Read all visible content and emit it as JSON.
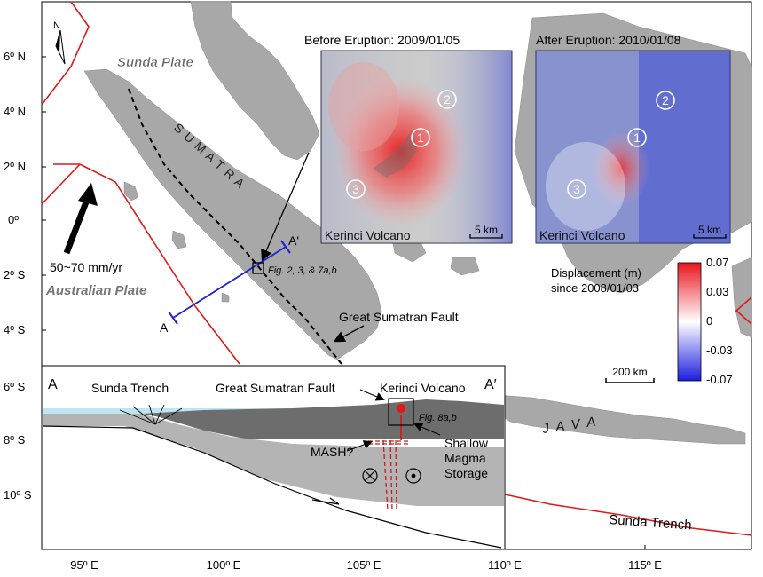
{
  "map": {
    "north_label": "N",
    "lat_labels": [
      "6º N",
      "4º N",
      "2º N",
      "0º",
      "2º S",
      "4º S",
      "6º S",
      "8º S",
      "10º S"
    ],
    "lon_labels": [
      "95º E",
      "100º E",
      "105º E",
      "110º E",
      "115º E"
    ],
    "plate_sunda": "Sunda Plate",
    "plate_australian": "Australian Plate",
    "rate": "50~70 mm/yr",
    "island_sumatra": "S U M A T R A",
    "island_java": "J A V A",
    "fault_label": "Great Sumatran Fault",
    "trench_label": "Sunda Trench",
    "profile_start": "A",
    "profile_end": "A'",
    "fig_ref_main": "Fig. 2, 3, & 7a,b",
    "scale_bar": "200 km"
  },
  "insar": {
    "before_title": "Before Eruption: 2009/01/05",
    "after_title": "After Eruption: 2010/01/08",
    "volcano_label": "Kerinci Volcano",
    "scale": "5 km",
    "markers": [
      "1",
      "2",
      "3"
    ]
  },
  "colorbar": {
    "title_line1": "Displacement (m)",
    "title_line2": "since 2008/01/03",
    "ticks": [
      "0.07",
      "0.03",
      "0",
      "-0.03",
      "-0.07"
    ],
    "colors": {
      "max": "#e8161e",
      "mid": "#ffffff",
      "min": "#1c1ce0"
    }
  },
  "cross_section": {
    "label_a": "A",
    "label_a_prime": "A′",
    "trench": "Sunda Trench",
    "fault": "Great Sumatran Fault",
    "volcano": "Kerinci Volcano",
    "fig_ref": "Fig. 8a,b",
    "mash": "MASH?",
    "storage_line1": "Shallow",
    "storage_line2": "Magma",
    "storage_line3": "Storage"
  },
  "colors": {
    "plate_boundary": "#e01818",
    "profile_line": "#2020d0",
    "land": "#a9a9a9",
    "sea_layer": "#bfe4f2"
  }
}
